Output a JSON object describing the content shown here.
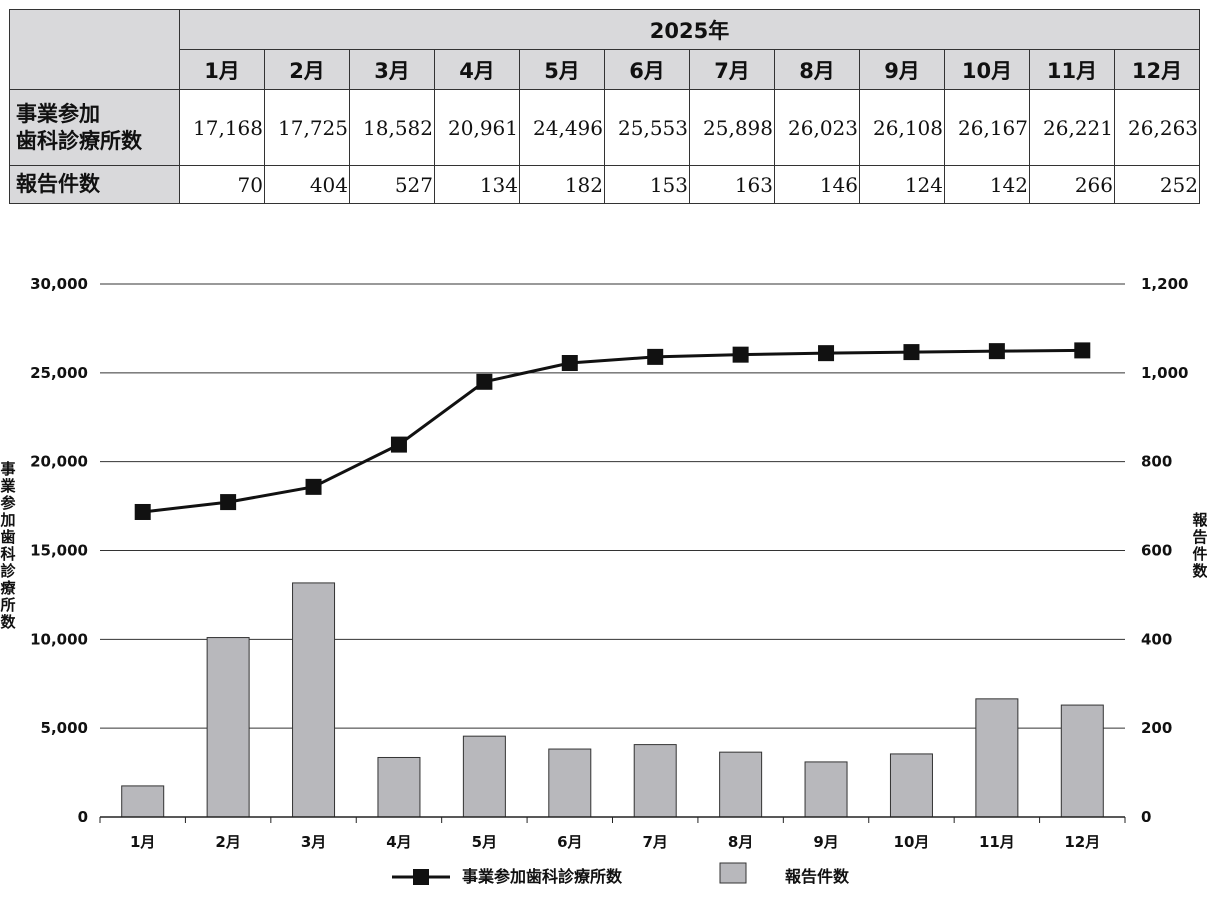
{
  "table": {
    "year_header": "2025年",
    "months": [
      "1月",
      "2月",
      "3月",
      "4月",
      "5月",
      "6月",
      "7月",
      "8月",
      "9月",
      "10月",
      "11月",
      "12月"
    ],
    "rows": [
      {
        "label_lines": [
          "事業参加",
          "歯科診療所数"
        ],
        "values": [
          "17,168",
          "17,725",
          "18,582",
          "20,961",
          "24,496",
          "25,553",
          "25,898",
          "26,023",
          "26,108",
          "26,167",
          "26,221",
          "26,263"
        ]
      },
      {
        "label_lines": [
          "報告件数"
        ],
        "values": [
          "70",
          "404",
          "527",
          "134",
          "182",
          "153",
          "163",
          "146",
          "124",
          "142",
          "266",
          "252"
        ]
      }
    ]
  },
  "chart_data": {
    "type": "bar",
    "categories": [
      "1月",
      "2月",
      "3月",
      "4月",
      "5月",
      "6月",
      "7月",
      "8月",
      "9月",
      "10月",
      "11月",
      "12月"
    ],
    "series": [
      {
        "name": "事業参加歯科診療所数",
        "type": "line",
        "axis": "left",
        "values": [
          17168,
          17725,
          18582,
          20961,
          24496,
          25553,
          25898,
          26023,
          26108,
          26167,
          26221,
          26263
        ],
        "color": "#111111"
      },
      {
        "name": "報告件数",
        "type": "bar",
        "axis": "right",
        "values": [
          70,
          404,
          527,
          134,
          182,
          153,
          163,
          146,
          124,
          142,
          266,
          252
        ],
        "color": "#b8b8bc"
      }
    ],
    "left_axis": {
      "label": "事業参加歯科診療所数",
      "ylim": [
        0,
        30000
      ],
      "ticks": [
        "0",
        "5,000",
        "10,000",
        "15,000",
        "20,000",
        "25,000",
        "30,000"
      ]
    },
    "right_axis": {
      "label": "報告件数",
      "ylim": [
        0,
        1200
      ],
      "ticks": [
        "0",
        "200",
        "400",
        "600",
        "800",
        "1,000",
        "1,200"
      ]
    },
    "grid": true,
    "legend": "bottom-center"
  }
}
